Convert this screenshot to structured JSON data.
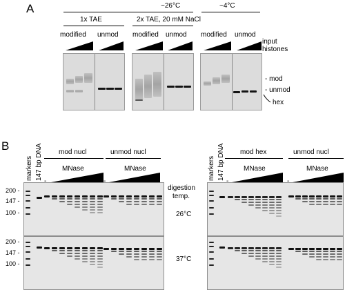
{
  "panel_a": {
    "letter": "A",
    "temps": [
      "~26°C",
      "~4°C"
    ],
    "buffers": [
      "1x TAE",
      "2x TAE, 20 mM NaCl"
    ],
    "lanes": [
      "modified",
      "unmod",
      "modified",
      "unmod",
      "modified",
      "unmod"
    ],
    "input_label": [
      "input",
      "histones"
    ],
    "band_labels": [
      "mod",
      "unmod",
      "hex"
    ]
  },
  "panel_b": {
    "letter": "B",
    "side_labels": [
      "markers",
      "147 bp DNA"
    ],
    "groups": [
      "mod nucl",
      "unmod nucl",
      "mod hex",
      "unmod nucl"
    ],
    "enzyme": "MNase",
    "minus": "-",
    "marker_ticks": [
      "200 -",
      "147 -",
      "100 -"
    ],
    "digestion_label": [
      "digestion",
      "temp."
    ],
    "temps": [
      "26°C",
      "37°C"
    ]
  },
  "colors": {
    "band": "#141414",
    "gel": "#dcdcdc"
  }
}
